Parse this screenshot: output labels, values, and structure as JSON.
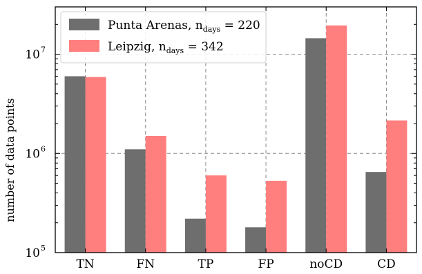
{
  "chart_data": {
    "type": "bar",
    "categories": [
      "TN",
      "FN",
      "TP",
      "FP",
      "noCD",
      "CD"
    ],
    "series": [
      {
        "name": "Punta Arenas, n_days = 220",
        "label_main": "Punta Arenas, n",
        "label_sub": "days",
        "label_tail": " = 220",
        "color": "#6e6e6e",
        "values": [
          6000000,
          1100000,
          220000,
          180000,
          14500000,
          650000
        ]
      },
      {
        "name": "Leipzig, n_days = 342",
        "label_main": "Leipzig, n",
        "label_sub": "days",
        "label_tail": " = 342",
        "color": "#ff7f7f",
        "values": [
          5900000,
          1500000,
          600000,
          530000,
          19500000,
          2150000
        ]
      }
    ],
    "ylabel": "number of data points",
    "yscale": "log",
    "ylim": [
      100000,
      30000000
    ],
    "yticks": [
      {
        "base": "10",
        "exp": "5",
        "value": 100000
      },
      {
        "base": "10",
        "exp": "6",
        "value": 1000000
      },
      {
        "base": "10",
        "exp": "7",
        "value": 10000000
      }
    ],
    "grid": true,
    "legend": "top-left"
  }
}
